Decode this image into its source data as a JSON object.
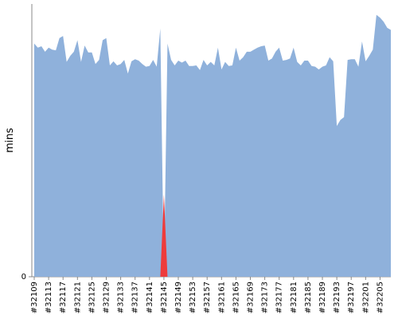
{
  "chart_data": {
    "type": "area",
    "y_label": "mins",
    "categories": [
      "#32109",
      null,
      null,
      null,
      "#32113",
      null,
      null,
      null,
      "#32117",
      null,
      null,
      null,
      "#32121",
      null,
      null,
      null,
      "#32125",
      null,
      null,
      null,
      "#32129",
      null,
      null,
      null,
      "#32133",
      null,
      null,
      null,
      "#32137",
      null,
      null,
      null,
      "#32141",
      null,
      null,
      null,
      "#32145",
      null,
      null,
      null,
      "#32149",
      null,
      null,
      null,
      "#32153",
      null,
      null,
      null,
      "#32157",
      null,
      null,
      null,
      "#32161",
      null,
      null,
      null,
      "#32165",
      null,
      null,
      null,
      "#32169",
      null,
      null,
      null,
      "#32173",
      null,
      null,
      null,
      "#32177",
      null,
      null,
      null,
      "#32181",
      null,
      null,
      null,
      "#32185",
      null,
      null,
      null,
      "#32189",
      null,
      null,
      null,
      "#32193",
      null,
      null,
      null,
      "#32197",
      null,
      null,
      null,
      "#32201",
      null,
      null,
      null,
      "#32205",
      null,
      null,
      null
    ],
    "series": [
      {
        "color": "#8fb1db",
        "values": [
          34.2,
          33.6,
          33.8,
          33.0,
          33.6,
          33.3,
          33.2,
          35.0,
          35.3,
          31.5,
          32.4,
          33.0,
          34.7,
          31.5,
          33.9,
          32.9,
          32.9,
          31.2,
          31.8,
          34.7,
          35.0,
          31.0,
          31.6,
          31.0,
          31.2,
          31.8,
          29.8,
          31.6,
          31.9,
          31.7,
          31.2,
          30.8,
          30.9,
          31.8,
          30.8,
          36.4,
          0,
          34.2,
          31.8,
          31.0,
          31.7,
          31.4,
          31.7,
          30.9,
          30.9,
          31.0,
          30.3,
          31.8,
          31.0,
          31.5,
          31.0,
          33.6,
          30.4,
          31.5,
          30.9,
          31.0,
          33.6,
          31.7,
          32.2,
          33.0,
          33.0,
          33.3,
          33.6,
          33.8,
          33.9,
          31.7,
          32.0,
          33.0,
          33.6,
          31.7,
          31.8,
          32.0,
          33.6,
          31.5,
          31.0,
          31.7,
          31.7,
          30.9,
          30.8,
          30.4,
          30.8,
          31.0,
          32.2,
          31.6,
          22.1,
          23.0,
          23.4,
          31.8,
          31.9,
          31.9,
          30.8,
          34.5,
          31.6,
          32.4,
          33.3,
          38.4,
          38.0,
          37.4,
          36.5,
          36.2
        ]
      },
      {
        "color": "#ee3b3b",
        "values": [
          null,
          null,
          null,
          null,
          null,
          null,
          null,
          null,
          null,
          null,
          null,
          null,
          null,
          null,
          null,
          null,
          null,
          null,
          null,
          null,
          null,
          null,
          null,
          null,
          null,
          null,
          null,
          null,
          null,
          null,
          null,
          null,
          null,
          null,
          null,
          0,
          12,
          0,
          null,
          null,
          null,
          null,
          null,
          null,
          null,
          null,
          null,
          null,
          null,
          null,
          null,
          null,
          null,
          null,
          null,
          null,
          null,
          null,
          null,
          null,
          null,
          null,
          null,
          null,
          null,
          null,
          null,
          null,
          null,
          null,
          null,
          null,
          null,
          null,
          null,
          null,
          null,
          null,
          null,
          null,
          null,
          null,
          null,
          null,
          null,
          null,
          null,
          null,
          null,
          null,
          null,
          null,
          null,
          null,
          null,
          null,
          null,
          null,
          null,
          null
        ]
      }
    ],
    "ylim": [
      0,
      40
    ],
    "yticks": [
      0
    ]
  }
}
